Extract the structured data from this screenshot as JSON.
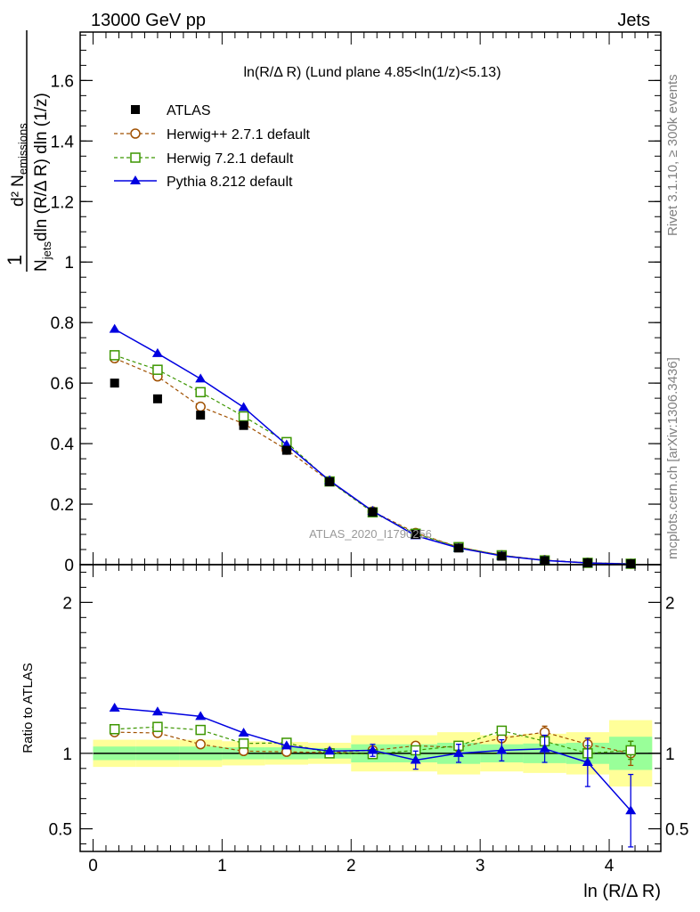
{
  "header": {
    "energy": "13000 GeV pp",
    "category": "Jets",
    "side_rivet": "Rivet 3.1.10, ≥ 300k events",
    "side_mcplots": "mcplots.cern.ch [arXiv:1306.3436]",
    "analysis_id": "ATLAS_2020_I1790256"
  },
  "colors": {
    "atlas": "#000000",
    "herwig_old": "#a05000",
    "herwig_new": "#3c9600",
    "pythia": "#0000e0",
    "band_outer": "#ffff99",
    "band_inner": "#99ff99"
  },
  "chart_data": [
    {
      "type": "scatter",
      "panel": "main",
      "title": "ln(R/Δ R) (Lund plane 4.85<ln(1/z)<5.13)",
      "ylabel": "1/N_jets d²N_emissions / dln(R/Δ R) dln(1/z)",
      "ylabel_parts": {
        "one": "1",
        "d2": "d² N",
        "emissions": "emissions",
        "den_n": "N",
        "den_jets": "jets",
        "den_rest": "dln (R/Δ R) dln (1/z)"
      },
      "xlim": [
        -0.1,
        4.4
      ],
      "ylim": [
        0,
        1.76
      ],
      "yticks": [
        0,
        0.2,
        0.4,
        0.6,
        0.8,
        1,
        1.2,
        1.4,
        1.6
      ],
      "ytick_labels": [
        "0",
        "0.2",
        "0.4",
        "0.6",
        "0.8",
        "1",
        "1.2",
        "1.4",
        "1.6"
      ],
      "x": [
        0.167,
        0.5,
        0.833,
        1.167,
        1.5,
        1.833,
        2.167,
        2.5,
        2.833,
        3.167,
        3.5,
        3.833,
        4.167
      ],
      "series": [
        {
          "name": "ATLAS",
          "marker": "filled-square",
          "values": [
            0.6,
            0.548,
            0.494,
            0.46,
            0.378,
            0.274,
            0.174,
            0.1,
            0.055,
            0.028,
            0.013,
            0.006,
            0.003
          ]
        },
        {
          "name": "Herwig++ 2.7.1 default",
          "marker": "open-circle",
          "line": "dashed",
          "values": [
            0.682,
            0.622,
            0.522,
            0.466,
            0.38,
            0.276,
            0.176,
            0.105,
            0.058,
            0.031,
            0.015,
            0.0065,
            0.003
          ]
        },
        {
          "name": "Herwig 7.2.1 default",
          "marker": "open-square",
          "line": "dashed",
          "values": [
            0.692,
            0.644,
            0.57,
            0.49,
            0.405,
            0.275,
            0.173,
            0.102,
            0.058,
            0.031,
            0.014,
            0.006,
            0.003
          ]
        },
        {
          "name": "Pythia 8.212 default",
          "marker": "filled-triangle",
          "line": "solid",
          "values": [
            0.778,
            0.698,
            0.614,
            0.52,
            0.396,
            0.278,
            0.177,
            0.096,
            0.055,
            0.029,
            0.014,
            0.0056,
            0.002
          ]
        }
      ]
    },
    {
      "type": "scatter",
      "panel": "ratio",
      "ylabel": "Ratio to ATLAS",
      "xlabel": "ln (R/Δ R)",
      "xlim": [
        -0.1,
        4.4
      ],
      "ylim": [
        0.35,
        2.25
      ],
      "yticks": [
        0.5,
        1,
        2
      ],
      "ytick_labels": [
        "0.5",
        "1",
        "2"
      ],
      "xticks": [
        0,
        1,
        2,
        3,
        4
      ],
      "xtick_labels": [
        "0",
        "1",
        "2",
        "3",
        "4"
      ],
      "x": [
        0.167,
        0.5,
        0.833,
        1.167,
        1.5,
        1.833,
        2.167,
        2.5,
        2.833,
        3.167,
        3.5,
        3.833,
        4.167
      ],
      "band_edges": [
        0,
        0.333,
        0.667,
        1.0,
        1.333,
        1.667,
        2.0,
        2.333,
        2.667,
        3.0,
        3.333,
        3.667,
        4.0,
        4.333
      ],
      "band_outer_low": [
        0.91,
        0.91,
        0.91,
        0.92,
        0.925,
        0.93,
        0.88,
        0.88,
        0.86,
        0.88,
        0.87,
        0.86,
        0.78
      ],
      "band_outer_high": [
        1.09,
        1.09,
        1.09,
        1.08,
        1.075,
        1.07,
        1.12,
        1.12,
        1.14,
        1.12,
        1.13,
        1.14,
        1.22
      ],
      "band_inner_low": [
        0.955,
        0.955,
        0.955,
        0.96,
        0.96,
        0.965,
        0.94,
        0.94,
        0.93,
        0.94,
        0.935,
        0.93,
        0.89
      ],
      "band_inner_high": [
        1.045,
        1.045,
        1.045,
        1.04,
        1.04,
        1.035,
        1.06,
        1.06,
        1.07,
        1.06,
        1.065,
        1.07,
        1.11
      ],
      "series": [
        {
          "name": "Herwig++ 2.7.1 default",
          "marker": "open-circle",
          "line": "dashed",
          "values": [
            1.14,
            1.135,
            1.06,
            1.015,
            1.01,
            1.005,
            1.02,
            1.05,
            1.04,
            1.1,
            1.14,
            1.06,
            1.0
          ],
          "err": [
            0,
            0,
            0,
            0,
            0,
            0,
            0,
            0,
            0,
            0,
            0.04,
            0.04,
            0.08
          ]
        },
        {
          "name": "Herwig 7.2.1 default",
          "marker": "open-square",
          "line": "dashed",
          "values": [
            1.16,
            1.175,
            1.155,
            1.065,
            1.07,
            1.0,
            0.995,
            1.02,
            1.05,
            1.15,
            1.08,
            1.0,
            1.02
          ],
          "err": [
            0,
            0,
            0,
            0,
            0,
            0,
            0,
            0,
            0,
            0,
            0.03,
            0.05,
            0.06
          ]
        },
        {
          "name": "Pythia 8.212 default",
          "marker": "filled-triangle",
          "line": "solid",
          "values": [
            1.3,
            1.275,
            1.245,
            1.135,
            1.05,
            1.015,
            1.02,
            0.955,
            1.0,
            1.02,
            1.03,
            0.94,
            0.62
          ],
          "err": [
            0,
            0,
            0,
            0,
            0,
            0,
            0.04,
            0.06,
            0.06,
            0.07,
            0.09,
            0.16,
            0.24
          ]
        }
      ]
    }
  ]
}
